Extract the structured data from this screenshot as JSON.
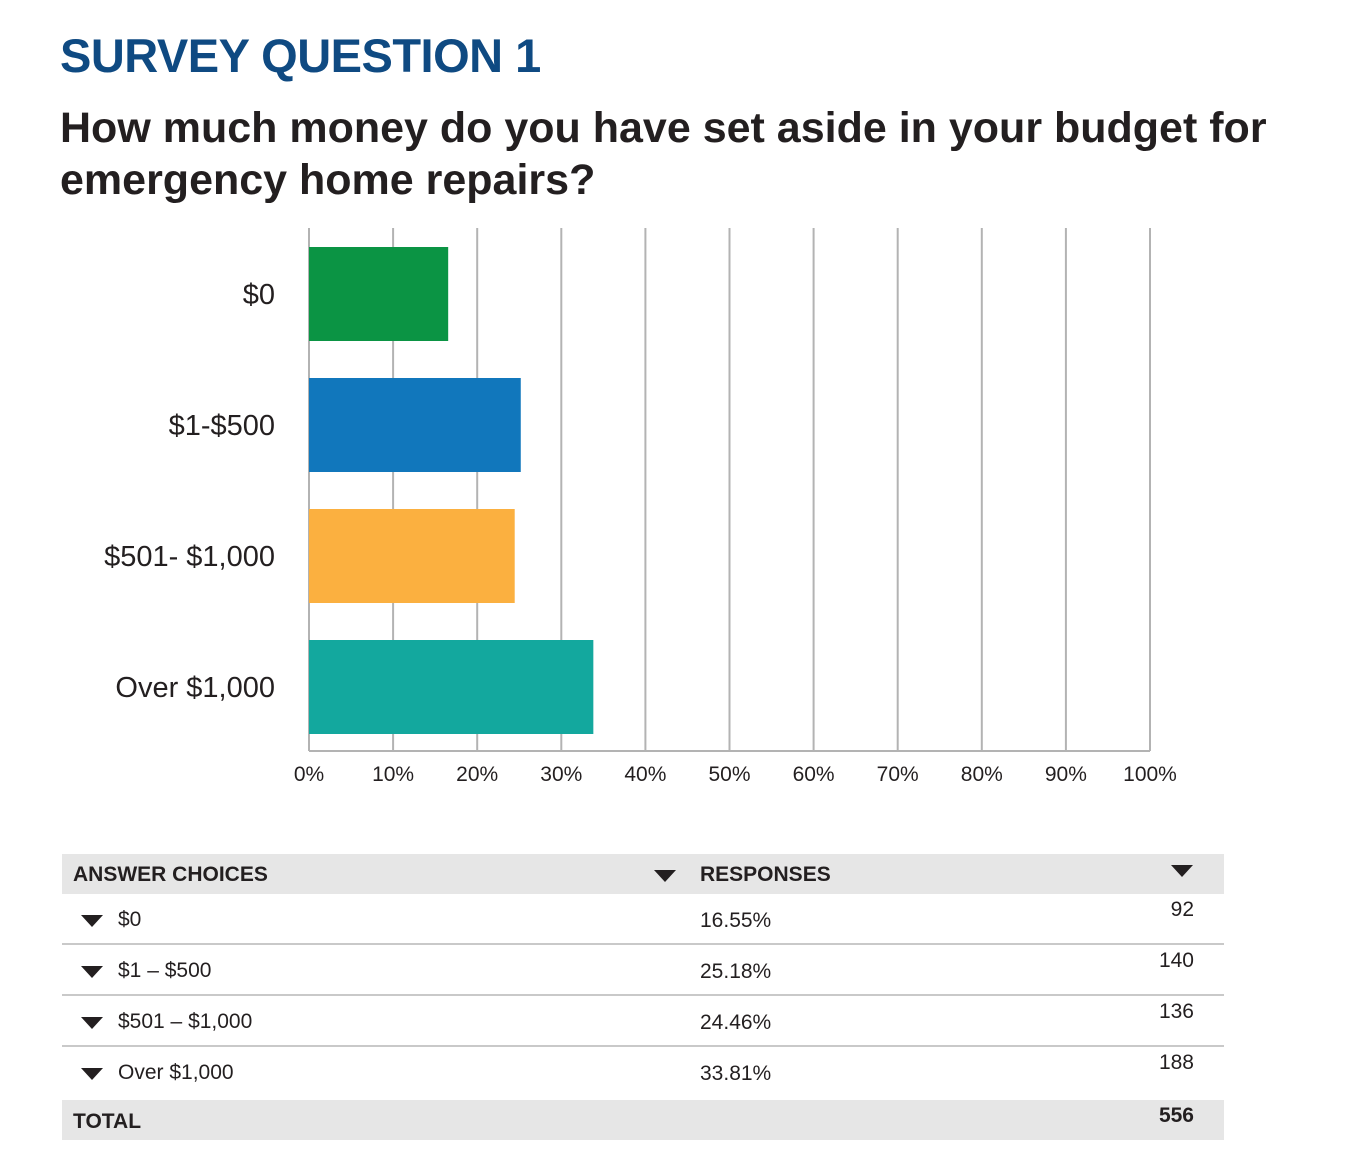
{
  "heading": "SURVEY QUESTION 1",
  "question": "How much money do you have set aside in your budget for emergency home repairs?",
  "chart_data": {
    "type": "bar",
    "orientation": "horizontal",
    "categories": [
      "$0",
      "$1-$500",
      "$501- $1,000",
      "Over $1,000"
    ],
    "values": [
      16.55,
      25.18,
      24.46,
      33.81
    ],
    "colors": [
      "#0b9444",
      "#1177bc",
      "#fbb040",
      "#13a89e"
    ],
    "xlim": [
      0,
      100
    ],
    "x_ticks": [
      "0%",
      "10%",
      "20%",
      "30%",
      "40%",
      "50%",
      "60%",
      "70%",
      "80%",
      "90%",
      "100%"
    ],
    "grid": true,
    "title": "",
    "xlabel": "",
    "ylabel": ""
  },
  "table": {
    "headers": {
      "choices": "ANSWER CHOICES",
      "responses": "RESPONSES"
    },
    "rows": [
      {
        "choice": "$0",
        "percent": "16.55%",
        "count": "92"
      },
      {
        "choice": "$1 – $500",
        "percent": "25.18%",
        "count": "140"
      },
      {
        "choice": "$501 – $1,000",
        "percent": "24.46%",
        "count": "136"
      },
      {
        "choice": "Over $1,000",
        "percent": "33.81%",
        "count": "188"
      }
    ],
    "total": {
      "label": "TOTAL",
      "count": "556"
    }
  }
}
